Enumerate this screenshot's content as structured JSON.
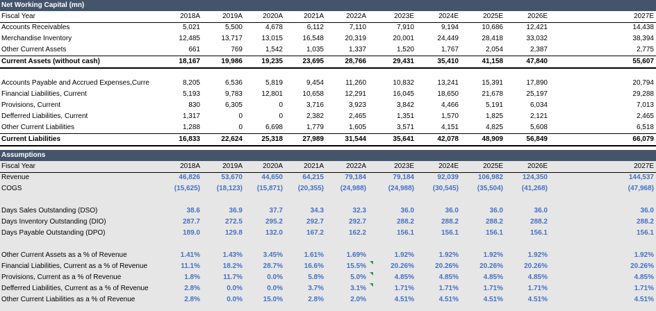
{
  "nwc": {
    "title": "Net Working Capital (mn)",
    "fiscal_year_label": "Fiscal Year",
    "years": [
      "2018A",
      "2019A",
      "2020A",
      "2021A",
      "2022A",
      "2023E",
      "2024E",
      "2025E",
      "2026E",
      "2027E"
    ],
    "rows": [
      {
        "label": "Accounts Receivables",
        "values": [
          "5,021",
          "5,500",
          "4,678",
          "6,112",
          "7,110",
          "7,910",
          "9,194",
          "10,686",
          "12,421",
          "14,438"
        ]
      },
      {
        "label": "Merchandise Inventory",
        "values": [
          "12,485",
          "13,717",
          "13,015",
          "16,548",
          "20,319",
          "20,001",
          "24,449",
          "28,418",
          "33,032",
          "38,394"
        ]
      },
      {
        "label": "Other Current Assets",
        "values": [
          "661",
          "769",
          "1,542",
          "1,035",
          "1,337",
          "1,520",
          "1,767",
          "2,054",
          "2,387",
          "2,775"
        ]
      }
    ],
    "ca_total": {
      "label": "Current Assets (without cash)",
      "values": [
        "18,167",
        "19,986",
        "19,235",
        "23,695",
        "28,766",
        "29,431",
        "35,410",
        "41,158",
        "47,840",
        "55,607"
      ]
    },
    "liab_rows": [
      {
        "label": "Accounts Payable and Accrued Expenses,Curre",
        "values": [
          "8,205",
          "6,536",
          "5,819",
          "9,454",
          "11,260",
          "10,832",
          "13,241",
          "15,391",
          "17,890",
          "20,794"
        ]
      },
      {
        "label": "Financial Liabilities, Current",
        "values": [
          "5,193",
          "9,783",
          "12,801",
          "10,658",
          "12,291",
          "16,045",
          "18,650",
          "21,678",
          "25,197",
          "29,288"
        ]
      },
      {
        "label": "Provisions, Current",
        "values": [
          "830",
          "6,305",
          "0",
          "3,716",
          "3,923",
          "3,842",
          "4,466",
          "5,191",
          "6,034",
          "7,013"
        ]
      },
      {
        "label": "Defferred Liabilities, Current",
        "values": [
          "1,317",
          "0",
          "0",
          "2,382",
          "2,465",
          "1,351",
          "1,570",
          "1,825",
          "2,121",
          "2,465"
        ]
      },
      {
        "label": "Other Current Liabilities",
        "values": [
          "1,288",
          "0",
          "6,698",
          "1,779",
          "1,605",
          "3,571",
          "4,151",
          "4,825",
          "5,608",
          "6,518"
        ]
      }
    ],
    "cl_total": {
      "label": "Current Liabilities",
      "values": [
        "16,833",
        "22,624",
        "25,318",
        "27,989",
        "31,544",
        "35,641",
        "42,078",
        "48,909",
        "56,849",
        "66,079"
      ]
    }
  },
  "assumptions": {
    "title": "Assumptions",
    "fiscal_year_label": "Fiscal Year",
    "rev_rows": [
      {
        "label": "Revenue",
        "values": [
          "46,826",
          "53,670",
          "44,650",
          "64,215",
          "79,184",
          "79,184",
          "92,039",
          "106,982",
          "124,350",
          "144,537"
        ]
      },
      {
        "label": "COGS",
        "values": [
          "(15,625)",
          "(18,123)",
          "(15,871)",
          "(20,355)",
          "(24,988)",
          "(24,988)",
          "(30,545)",
          "(35,504)",
          "(41,268)",
          "(47,968)"
        ]
      }
    ],
    "day_rows": [
      {
        "label": "Days Sales Outstanding (DSO)",
        "values": [
          "38.6",
          "36.9",
          "37.7",
          "34.3",
          "32.3",
          "36.0",
          "36.0",
          "36.0",
          "36.0",
          "36.0"
        ]
      },
      {
        "label": "Days Inventory Outstanding (DIO)",
        "values": [
          "287.7",
          "272.5",
          "295.2",
          "292.7",
          "292.7",
          "288.2",
          "288.2",
          "288.2",
          "288.2",
          "288.2"
        ]
      },
      {
        "label": "Days Payable Outstanding (DPO)",
        "values": [
          "189.0",
          "129.8",
          "132.0",
          "167.2",
          "162.2",
          "156.1",
          "156.1",
          "156.1",
          "156.1",
          "156.1"
        ]
      }
    ],
    "pct_rows": [
      {
        "label": "Other Current Assets as a % of Revenue",
        "values": [
          "1.41%",
          "1.43%",
          "3.45%",
          "1.61%",
          "1.69%",
          "1.92%",
          "1.92%",
          "1.92%",
          "1.92%",
          "1.92%"
        ]
      },
      {
        "label": "Financial Liabilities, Current as a % of Revenue",
        "values": [
          "11.1%",
          "18.2%",
          "28.7%",
          "16.6%",
          "15.5%",
          "20.26%",
          "20.26%",
          "20.26%",
          "20.26%",
          "20.26%"
        ]
      },
      {
        "label": "Provisions, Current as a % of Revenue",
        "values": [
          "1.8%",
          "11.7%",
          "0.0%",
          "5.8%",
          "5.0%",
          "4.85%",
          "4.85%",
          "4.85%",
          "4.85%",
          "4.85%"
        ]
      },
      {
        "label": "Defferred Liabilities, Current as a % of Revenue",
        "values": [
          "2.8%",
          "0.0%",
          "0.0%",
          "3.7%",
          "3.1%",
          "1.71%",
          "1.71%",
          "1.71%",
          "1.71%",
          "1.71%"
        ]
      },
      {
        "label": "Other Current Liabilities as a % of Revenue",
        "values": [
          "2.8%",
          "0.0%",
          "15.0%",
          "2.8%",
          "2.0%",
          "4.51%",
          "4.51%",
          "4.51%",
          "4.51%",
          "4.51%"
        ]
      }
    ]
  },
  "colors": {
    "header_bar": "#44546a",
    "input_blue": "#4472c4",
    "assumption_fill": "#e7e6e6",
    "flag_green": "#2e9b3f"
  }
}
